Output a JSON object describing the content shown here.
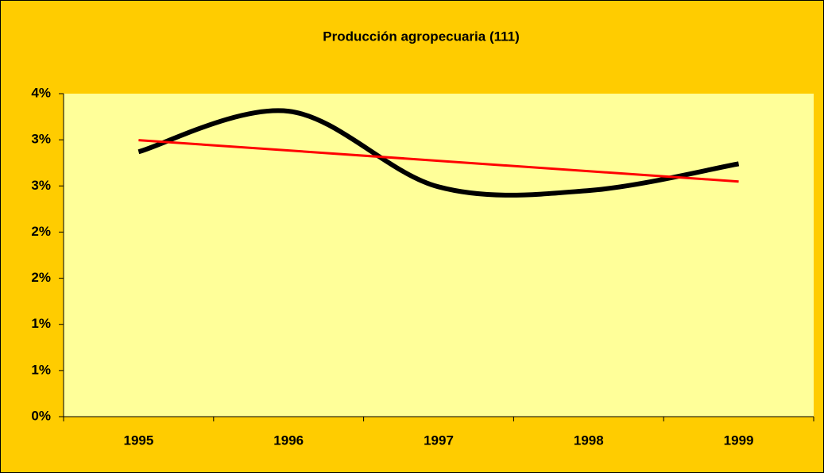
{
  "chart_data": {
    "type": "line",
    "title": "Producción agropecuaria (111)",
    "categories": [
      "1995",
      "1996",
      "1997",
      "1998",
      "1999"
    ],
    "series": [
      {
        "color": "#000000",
        "values": [
          2.87,
          3.31,
          2.49,
          2.45,
          2.74
        ],
        "smooth": true
      }
    ],
    "trendline": {
      "type": "linear",
      "color": "#ff0000"
    },
    "ylim": [
      0,
      3.5
    ],
    "yticks": [
      {
        "value": 0,
        "label": "0%"
      },
      {
        "value": 0.5,
        "label": "1%"
      },
      {
        "value": 1,
        "label": "1%"
      },
      {
        "value": 1.5,
        "label": "2%"
      },
      {
        "value": 2,
        "label": "2%"
      },
      {
        "value": 2.5,
        "label": "3%"
      },
      {
        "value": 3,
        "label": "3%"
      },
      {
        "value": 3.5,
        "label": "4%"
      }
    ],
    "background": "#ffcc00",
    "plot_background": "#ffff99"
  }
}
